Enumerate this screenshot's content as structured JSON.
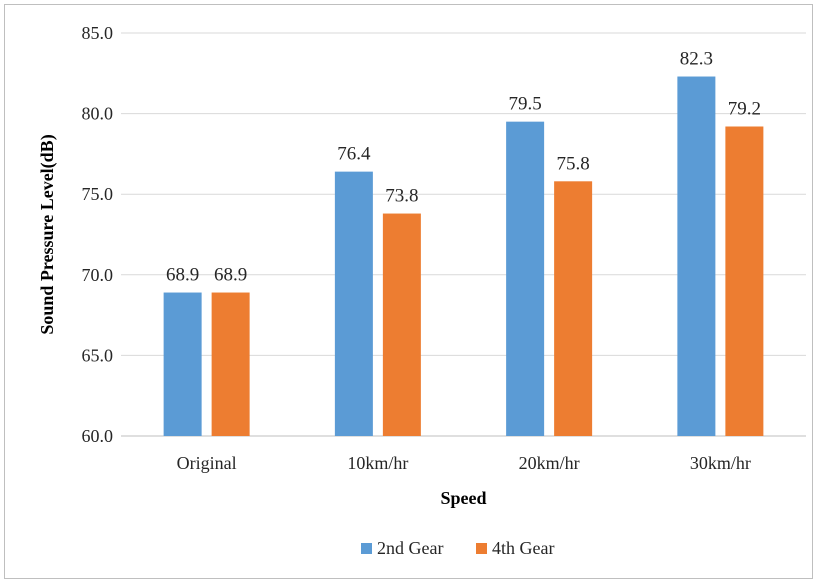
{
  "chart_data": {
    "type": "bar",
    "title": "",
    "xlabel": "Speed",
    "ylabel": "Sound Pressure Level(dB)",
    "categories": [
      "Original",
      "10km/hr",
      "20km/hr",
      "30km/hr"
    ],
    "series": [
      {
        "name": "2nd Gear",
        "color": "#5b9bd5",
        "values": [
          68.9,
          76.4,
          79.5,
          82.3
        ]
      },
      {
        "name": "4th Gear",
        "color": "#ed7d31",
        "values": [
          68.9,
          73.8,
          75.8,
          79.2
        ]
      }
    ],
    "ylim": [
      60.0,
      85.0
    ],
    "yticks": [
      "60.0",
      "65.0",
      "70.0",
      "75.0",
      "80.0",
      "85.0"
    ],
    "data_labels": [
      [
        "68.9",
        "76.4",
        "79.5",
        "82.3"
      ],
      [
        "68.9",
        "73.8",
        "75.8",
        "79.2"
      ]
    ],
    "grid": true,
    "legend_position": "bottom"
  }
}
